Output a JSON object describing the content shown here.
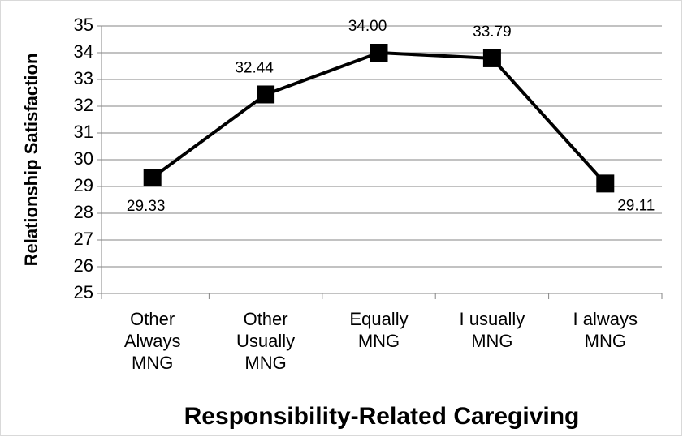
{
  "chart_data": {
    "type": "line",
    "x_label": "Responsibility-Related Caregiving",
    "y_label": "Relationship Satisfaction",
    "categories": [
      "Other Always MNG",
      "Other Usually MNG",
      "Equally MNG",
      "I usually MNG",
      "I always MNG"
    ],
    "series": [
      {
        "name": "Relationship Satisfaction",
        "color": "#000000",
        "values": [
          29.33,
          32.44,
          34.0,
          33.79,
          29.11
        ],
        "value_labels": [
          "29.33",
          "32.44",
          "34.00",
          "33.79",
          "29.11"
        ]
      }
    ],
    "ylim": [
      25,
      35
    ],
    "yticks": [
      25,
      26,
      27,
      28,
      29,
      30,
      31,
      32,
      33,
      34,
      35
    ],
    "grid": true,
    "marker": "square"
  }
}
